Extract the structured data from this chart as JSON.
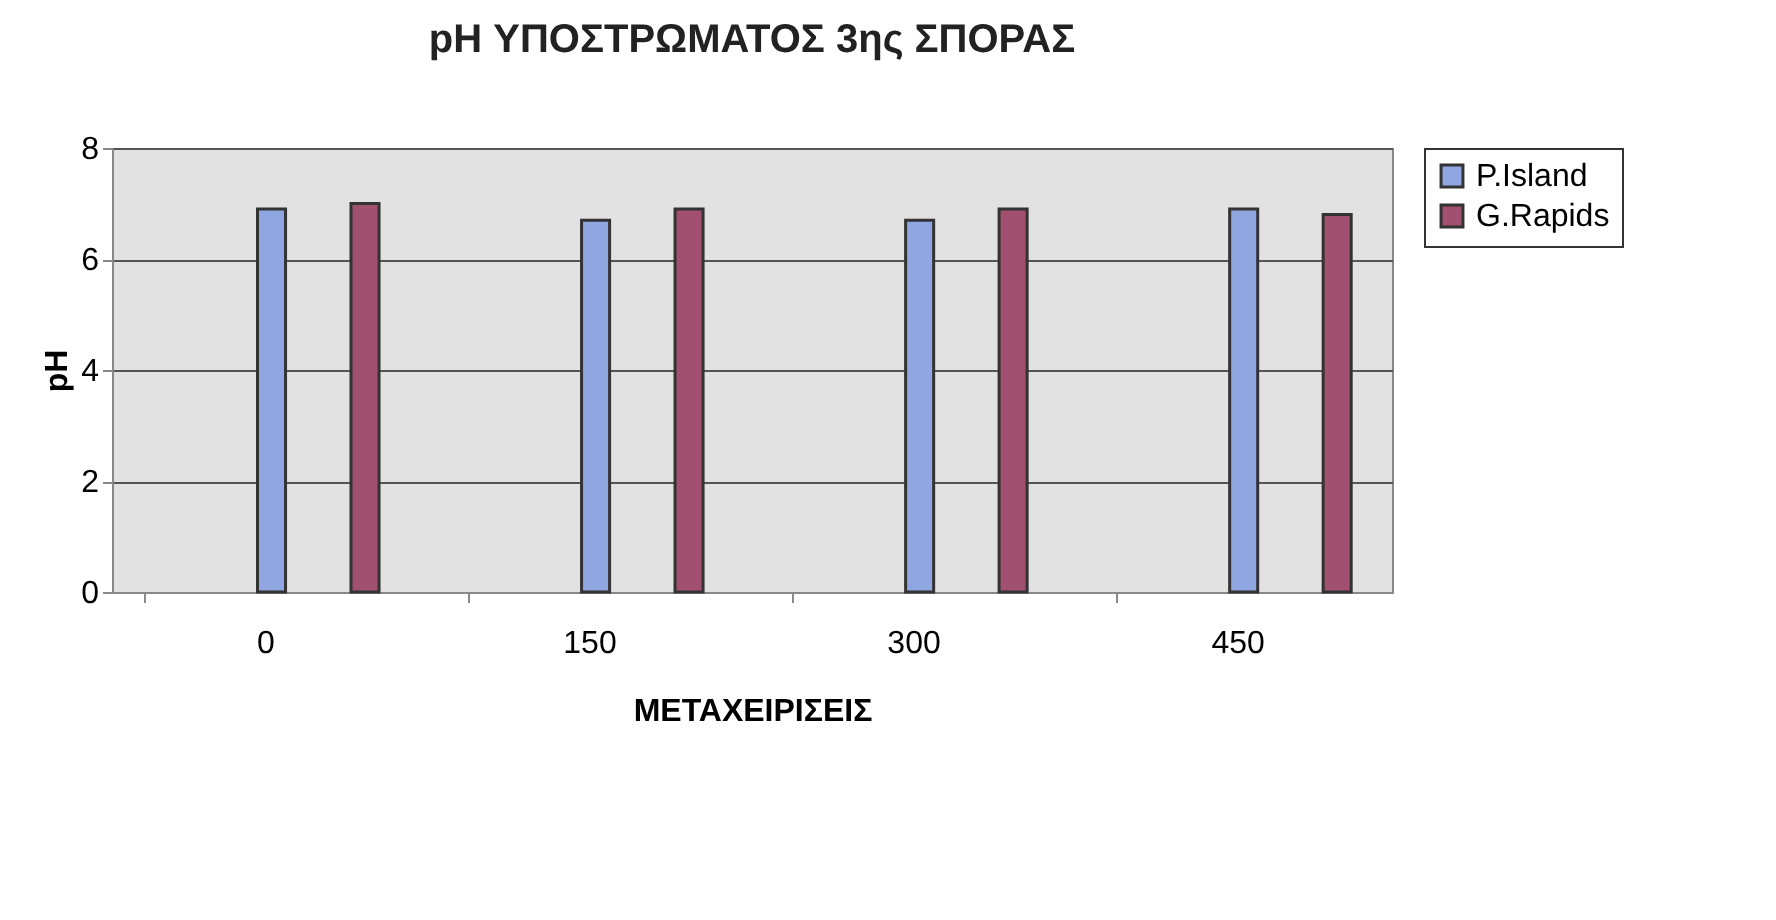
{
  "chart_data": {
    "type": "bar",
    "title": "pH ΥΠΟΣΤΡΩΜΑΤΟΣ 3ης ΣΠΟΡΑΣ",
    "xlabel": "ΜΕΤΑΧΕΙΡΙΣΕΙΣ",
    "ylabel": "pH",
    "categories": [
      "0",
      "150",
      "300",
      "450"
    ],
    "series": [
      {
        "name": "P.Island",
        "color": "#8fa6e0",
        "values": [
          6.9,
          6.7,
          6.7,
          6.9
        ]
      },
      {
        "name": "G.Rapids",
        "color": "#a2506f",
        "values": [
          7.0,
          6.9,
          6.9,
          6.8
        ]
      }
    ],
    "ylim": [
      0,
      8
    ],
    "yticks": [
      0,
      2,
      4,
      6,
      8
    ],
    "grid": "y",
    "legend": "right"
  }
}
